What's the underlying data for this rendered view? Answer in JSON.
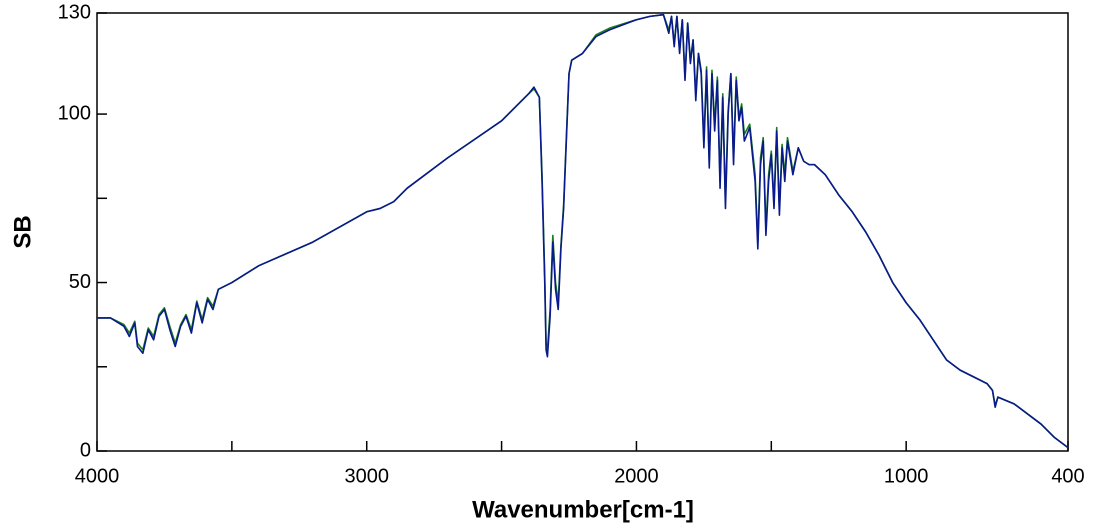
{
  "chart_data": {
    "type": "line",
    "x_label": "Wavenumber[cm-1]",
    "y_label": "SB",
    "xlim": [
      4000,
      400
    ],
    "ylim": [
      0,
      130
    ],
    "xticks": [
      4000,
      3000,
      2000,
      1000,
      400
    ],
    "x_minor_ticks": [
      3500,
      2500,
      1500
    ],
    "yticks": [
      0,
      50,
      100,
      130
    ],
    "y_minor_ticks": [
      25,
      75
    ],
    "x": [
      4000,
      3950,
      3900,
      3880,
      3860,
      3850,
      3830,
      3810,
      3790,
      3770,
      3750,
      3730,
      3710,
      3690,
      3670,
      3650,
      3630,
      3610,
      3590,
      3570,
      3550,
      3500,
      3400,
      3200,
      3000,
      2950,
      2900,
      2850,
      2700,
      2500,
      2400,
      2380,
      2360,
      2350,
      2340,
      2335,
      2330,
      2320,
      2310,
      2300,
      2290,
      2280,
      2270,
      2260,
      2250,
      2240,
      2200,
      2150,
      2100,
      2000,
      1950,
      1900,
      1880,
      1870,
      1860,
      1850,
      1840,
      1830,
      1820,
      1810,
      1800,
      1790,
      1780,
      1770,
      1760,
      1750,
      1740,
      1730,
      1720,
      1710,
      1700,
      1690,
      1680,
      1670,
      1660,
      1650,
      1640,
      1630,
      1620,
      1610,
      1600,
      1580,
      1560,
      1550,
      1540,
      1530,
      1520,
      1510,
      1500,
      1490,
      1480,
      1470,
      1460,
      1450,
      1440,
      1420,
      1400,
      1380,
      1360,
      1340,
      1300,
      1250,
      1200,
      1150,
      1100,
      1050,
      1000,
      950,
      900,
      850,
      800,
      750,
      700,
      680,
      670,
      660,
      600,
      500,
      450,
      400
    ],
    "series": [
      {
        "color": "#1a7f1a",
        "values": [
          39.5,
          39.5,
          37.5,
          35,
          38.5,
          32,
          30,
          36.5,
          34,
          40.5,
          42.5,
          37,
          32,
          37.5,
          40.5,
          36,
          44.5,
          39,
          45.5,
          43,
          48,
          50,
          55,
          62,
          71,
          72,
          74,
          78,
          87,
          98,
          106,
          107.5,
          105,
          82,
          52,
          32,
          30,
          42,
          64,
          50,
          44,
          61,
          73,
          93,
          112,
          116,
          118,
          123.5,
          125.5,
          128,
          129,
          129.5,
          125,
          129,
          121,
          129,
          119,
          128,
          111,
          127,
          116,
          122,
          106,
          118,
          113,
          92,
          114,
          86,
          113,
          97,
          111,
          80,
          106,
          74,
          101,
          112,
          87,
          111,
          99,
          103,
          94,
          97,
          82,
          62,
          87,
          93,
          66,
          82,
          89,
          74,
          96,
          72,
          91,
          82,
          93,
          83,
          90,
          86,
          85,
          85,
          82,
          76,
          71,
          65,
          58,
          50,
          44,
          39,
          33,
          27,
          24,
          22,
          20,
          18,
          13.5,
          16,
          14,
          8,
          4,
          1
        ]
      },
      {
        "color": "#0a1a8c",
        "values": [
          39.5,
          39.5,
          37,
          34,
          38,
          31,
          29,
          36,
          33,
          40,
          42,
          36,
          31,
          37,
          40,
          35,
          44,
          38,
          45,
          42,
          48,
          50,
          55,
          62,
          71,
          72,
          74,
          78,
          87,
          98,
          106,
          108,
          105,
          80,
          50,
          30,
          28,
          40,
          62,
          48,
          42,
          60,
          72,
          92,
          112,
          116,
          118,
          123,
          125,
          128,
          129,
          129.5,
          124,
          129,
          120,
          129,
          118,
          128,
          110,
          127,
          115,
          122,
          104,
          118,
          112,
          90,
          113,
          84,
          112,
          95,
          110,
          78,
          105,
          72,
          100,
          112,
          85,
          110,
          98,
          102,
          92,
          96,
          80,
          60,
          85,
          92,
          64,
          80,
          88,
          72,
          95,
          70,
          90,
          80,
          92,
          82,
          90,
          86,
          85,
          85,
          82,
          76,
          71,
          65,
          58,
          50,
          44,
          39,
          33,
          27,
          24,
          22,
          20,
          18,
          13,
          16,
          14,
          8,
          4,
          1
        ]
      }
    ]
  }
}
